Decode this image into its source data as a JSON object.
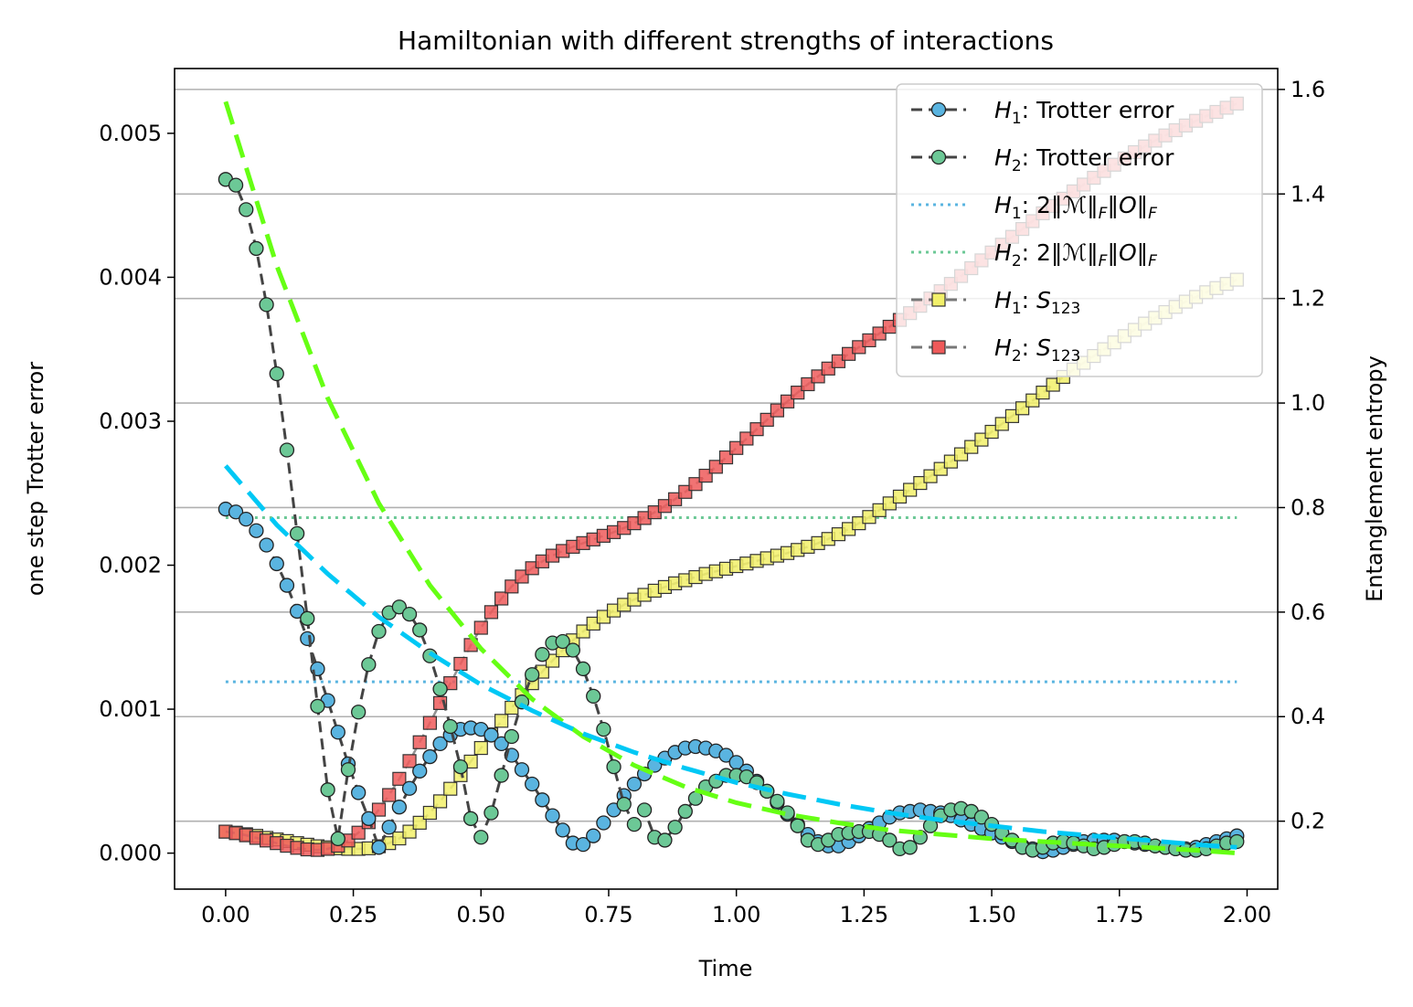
{
  "chart_data": {
    "type": "line",
    "title": "Hamiltonian with different strengths of interactions",
    "xlabel": "Time",
    "ylabel_left": "one step Trotter error",
    "ylabel_right": "Entanglement entropy",
    "xlim": [
      -0.1,
      2.06
    ],
    "ylim_left": [
      -0.00025,
      0.00545
    ],
    "ylim_right": [
      0.07,
      1.64
    ],
    "xticks": [
      "0.00",
      "0.25",
      "0.50",
      "0.75",
      "1.00",
      "1.25",
      "1.50",
      "1.75",
      "2.00"
    ],
    "xtick_values": [
      0,
      0.25,
      0.5,
      0.75,
      1.0,
      1.25,
      1.5,
      1.75,
      2.0
    ],
    "yticks_left": [
      "0.000",
      "0.001",
      "0.002",
      "0.003",
      "0.004",
      "0.005"
    ],
    "ytick_values_left": [
      0,
      0.001,
      0.002,
      0.003,
      0.004,
      0.005
    ],
    "yticks_right": [
      "0.2",
      "0.4",
      "0.6",
      "0.8",
      "1.0",
      "1.2",
      "1.4",
      "1.6"
    ],
    "ytick_values_right": [
      0.2,
      0.4,
      0.6,
      0.8,
      1.0,
      1.2,
      1.4,
      1.6
    ],
    "grid": "horizontal lines at right-axis ticks",
    "legend_position": "top-right",
    "series": [
      {
        "name": "H1: Trotter error",
        "legend_italic": "H",
        "legend_sub": "1",
        "legend_rest": ": Trotter error",
        "axis": "left",
        "style": "dashed-circles",
        "line_color": "#444444",
        "marker_color": "#5ab4e0",
        "x": [
          0.0,
          0.02,
          0.04,
          0.06,
          0.08,
          0.1,
          0.12,
          0.14,
          0.16,
          0.18,
          0.2,
          0.22,
          0.24,
          0.26,
          0.28,
          0.3,
          0.32,
          0.34,
          0.36,
          0.38,
          0.4,
          0.42,
          0.44,
          0.46,
          0.48,
          0.5,
          0.52,
          0.54,
          0.56,
          0.58,
          0.6,
          0.62,
          0.64,
          0.66,
          0.68,
          0.7,
          0.72,
          0.74,
          0.76,
          0.78,
          0.8,
          0.82,
          0.84,
          0.86,
          0.88,
          0.9,
          0.92,
          0.94,
          0.96,
          0.98,
          1.0,
          1.02,
          1.04,
          1.06,
          1.08,
          1.1,
          1.12,
          1.14,
          1.16,
          1.18,
          1.2,
          1.22,
          1.24,
          1.26,
          1.28,
          1.3,
          1.32,
          1.34,
          1.36,
          1.38,
          1.4,
          1.42,
          1.44,
          1.46,
          1.48,
          1.5,
          1.52,
          1.54,
          1.56,
          1.58,
          1.6,
          1.62,
          1.64,
          1.66,
          1.68,
          1.7,
          1.72,
          1.74,
          1.76,
          1.78,
          1.8,
          1.82,
          1.84,
          1.86,
          1.88,
          1.9,
          1.92,
          1.94,
          1.96,
          1.98
        ],
        "values": [
          0.00239,
          0.00237,
          0.00232,
          0.00224,
          0.00214,
          0.00201,
          0.00186,
          0.00168,
          0.00149,
          0.00128,
          0.00106,
          0.00084,
          0.00062,
          0.00042,
          0.00024,
          4e-05,
          0.00018,
          0.00032,
          0.00045,
          0.00057,
          0.00067,
          0.00076,
          0.00082,
          0.00086,
          0.00087,
          0.00086,
          0.00082,
          0.00076,
          0.00068,
          0.00058,
          0.00048,
          0.00037,
          0.00026,
          0.00016,
          7e-05,
          6e-05,
          0.00012,
          0.00021,
          0.0003,
          0.0004,
          0.00048,
          0.00055,
          0.00061,
          0.00066,
          0.0007,
          0.00073,
          0.00074,
          0.00073,
          0.00071,
          0.00068,
          0.00063,
          0.00057,
          0.0005,
          0.00043,
          0.00035,
          0.00027,
          0.0002,
          0.00013,
          8e-05,
          5e-05,
          5e-05,
          8e-05,
          0.00012,
          0.00017,
          0.00021,
          0.00025,
          0.00028,
          0.00029,
          0.0003,
          0.00029,
          0.00028,
          0.00026,
          0.00023,
          0.0002,
          0.00017,
          0.00014,
          0.00011,
          8e-05,
          5e-05,
          3e-05,
          1e-05,
          2e-05,
          4e-05,
          6e-05,
          8e-05,
          9e-05,
          9e-05,
          9e-05,
          8e-05,
          7e-05,
          6e-05,
          5e-05,
          4e-05,
          3e-05,
          3e-05,
          4e-05,
          6e-05,
          8e-05,
          0.0001,
          0.00012
        ]
      },
      {
        "name": "H2: Trotter error",
        "legend_italic": "H",
        "legend_sub": "2",
        "legend_rest": ": Trotter error",
        "axis": "left",
        "style": "dashed-circles",
        "line_color": "#444444",
        "marker_color": "#6cc896",
        "x": [
          0.0,
          0.02,
          0.04,
          0.06,
          0.08,
          0.1,
          0.12,
          0.14,
          0.16,
          0.18,
          0.2,
          0.22,
          0.24,
          0.26,
          0.28,
          0.3,
          0.32,
          0.34,
          0.36,
          0.38,
          0.4,
          0.42,
          0.44,
          0.46,
          0.48,
          0.5,
          0.52,
          0.54,
          0.56,
          0.58,
          0.6,
          0.62,
          0.64,
          0.66,
          0.68,
          0.7,
          0.72,
          0.74,
          0.76,
          0.78,
          0.8,
          0.82,
          0.84,
          0.86,
          0.88,
          0.9,
          0.92,
          0.94,
          0.96,
          0.98,
          1.0,
          1.02,
          1.04,
          1.06,
          1.08,
          1.1,
          1.12,
          1.14,
          1.16,
          1.18,
          1.2,
          1.22,
          1.24,
          1.26,
          1.28,
          1.3,
          1.32,
          1.34,
          1.36,
          1.38,
          1.4,
          1.42,
          1.44,
          1.46,
          1.48,
          1.5,
          1.52,
          1.54,
          1.56,
          1.58,
          1.6,
          1.62,
          1.64,
          1.66,
          1.68,
          1.7,
          1.72,
          1.74,
          1.76,
          1.78,
          1.8,
          1.82,
          1.84,
          1.86,
          1.88,
          1.9,
          1.92,
          1.94,
          1.96,
          1.98
        ],
        "values": [
          0.00468,
          0.00464,
          0.00447,
          0.0042,
          0.00381,
          0.00333,
          0.0028,
          0.00222,
          0.00163,
          0.00102,
          0.00044,
          0.0001,
          0.00058,
          0.00098,
          0.00131,
          0.00154,
          0.00167,
          0.00171,
          0.00166,
          0.00155,
          0.00137,
          0.00114,
          0.00088,
          0.0006,
          0.00024,
          0.00011,
          0.00028,
          0.00054,
          0.00081,
          0.00105,
          0.00124,
          0.00138,
          0.00146,
          0.00147,
          0.00141,
          0.00128,
          0.00109,
          0.00086,
          0.0006,
          0.00034,
          0.0002,
          0.0003,
          0.00011,
          9e-05,
          0.00018,
          0.00029,
          0.00038,
          0.00046,
          0.0005,
          0.00054,
          0.00054,
          0.00053,
          0.00049,
          0.00043,
          0.00036,
          0.00028,
          0.00019,
          9e-05,
          6e-05,
          9e-05,
          0.00013,
          0.00014,
          0.00015,
          0.00015,
          0.00013,
          9e-05,
          3e-05,
          4e-05,
          0.00011,
          0.00019,
          0.00026,
          0.0003,
          0.00031,
          0.00029,
          0.00025,
          0.0002,
          0.00014,
          9e-05,
          4e-05,
          2e-05,
          4e-05,
          7e-05,
          8e-05,
          7e-05,
          5e-05,
          3e-05,
          4e-05,
          6e-05,
          8e-05,
          8e-05,
          7e-05,
          5e-05,
          4e-05,
          3e-05,
          2e-05,
          2e-05,
          3e-05,
          5e-05,
          7e-05,
          8e-05
        ]
      },
      {
        "name": "H1: 2‖M‖F‖O‖F",
        "legend_italic": "H",
        "legend_sub": "1",
        "legend_rest": ": 2‖ℳ‖",
        "legend_f": "F",
        "legend_mid": "‖O‖",
        "legend_f2": "F",
        "axis": "left",
        "style": "dotted",
        "line_color": "#5ab4e0",
        "x": [
          0.0,
          1.98
        ],
        "values": [
          0.00119,
          0.00119
        ]
      },
      {
        "name": "H2: 2‖M‖F‖O‖F",
        "legend_italic": "H",
        "legend_sub": "2",
        "legend_rest": ": 2‖ℳ‖",
        "legend_f": "F",
        "legend_mid": "‖O‖",
        "legend_f2": "F",
        "axis": "left",
        "style": "dotted",
        "line_color": "#6cc896",
        "x": [
          0.0,
          1.98
        ],
        "values": [
          0.00233,
          0.00233
        ]
      },
      {
        "name": "H1: S123",
        "legend_italic": "H",
        "legend_sub": "1",
        "legend_rest": ": ",
        "legend_s": "S",
        "legend_s_sub": "123",
        "axis": "right",
        "style": "dashed-squares",
        "line_color": "#777777",
        "marker_color": "#f2f06a",
        "x": [
          0.0,
          0.02,
          0.04,
          0.06,
          0.08,
          0.1,
          0.12,
          0.14,
          0.16,
          0.18,
          0.2,
          0.22,
          0.24,
          0.26,
          0.28,
          0.3,
          0.32,
          0.34,
          0.36,
          0.38,
          0.4,
          0.42,
          0.44,
          0.46,
          0.48,
          0.5,
          0.52,
          0.54,
          0.56,
          0.58,
          0.6,
          0.62,
          0.64,
          0.66,
          0.68,
          0.7,
          0.72,
          0.74,
          0.76,
          0.78,
          0.8,
          0.82,
          0.84,
          0.86,
          0.88,
          0.9,
          0.92,
          0.94,
          0.96,
          0.98,
          1.0,
          1.02,
          1.04,
          1.06,
          1.08,
          1.1,
          1.12,
          1.14,
          1.16,
          1.18,
          1.2,
          1.22,
          1.24,
          1.26,
          1.28,
          1.3,
          1.32,
          1.34,
          1.36,
          1.38,
          1.4,
          1.42,
          1.44,
          1.46,
          1.48,
          1.5,
          1.52,
          1.54,
          1.56,
          1.58,
          1.6,
          1.62,
          1.64,
          1.66,
          1.68,
          1.7,
          1.72,
          1.74,
          1.76,
          1.78,
          1.8,
          1.82,
          1.84,
          1.86,
          1.88,
          1.9,
          1.92,
          1.94,
          1.96,
          1.98
        ],
        "values": [
          0.18,
          0.178,
          0.175,
          0.172,
          0.168,
          0.165,
          0.162,
          0.158,
          0.155,
          0.152,
          0.15,
          0.148,
          0.147,
          0.147,
          0.148,
          0.152,
          0.158,
          0.167,
          0.18,
          0.197,
          0.216,
          0.238,
          0.262,
          0.288,
          0.314,
          0.34,
          0.366,
          0.392,
          0.417,
          0.441,
          0.464,
          0.486,
          0.507,
          0.527,
          0.546,
          0.563,
          0.578,
          0.591,
          0.603,
          0.614,
          0.624,
          0.633,
          0.641,
          0.648,
          0.655,
          0.661,
          0.667,
          0.673,
          0.678,
          0.683,
          0.688,
          0.693,
          0.698,
          0.703,
          0.708,
          0.713,
          0.719,
          0.725,
          0.732,
          0.74,
          0.749,
          0.759,
          0.77,
          0.782,
          0.795,
          0.808,
          0.821,
          0.834,
          0.847,
          0.86,
          0.874,
          0.888,
          0.902,
          0.916,
          0.93,
          0.945,
          0.96,
          0.975,
          0.99,
          1.005,
          1.02,
          1.035,
          1.05,
          1.064,
          1.077,
          1.09,
          1.103,
          1.116,
          1.128,
          1.14,
          1.152,
          1.163,
          1.174,
          1.184,
          1.194,
          1.203,
          1.212,
          1.22,
          1.228,
          1.236
        ]
      },
      {
        "name": "H2: S123",
        "legend_italic": "H",
        "legend_sub": "2",
        "legend_rest": ": ",
        "legend_s": "S",
        "legend_s_sub": "123",
        "axis": "right",
        "style": "dashed-squares",
        "line_color": "#777777",
        "marker_color": "#ef5a5a",
        "x": [
          0.0,
          0.02,
          0.04,
          0.06,
          0.08,
          0.1,
          0.12,
          0.14,
          0.16,
          0.18,
          0.2,
          0.22,
          0.24,
          0.26,
          0.28,
          0.3,
          0.32,
          0.34,
          0.36,
          0.38,
          0.4,
          0.42,
          0.44,
          0.46,
          0.48,
          0.5,
          0.52,
          0.54,
          0.56,
          0.58,
          0.6,
          0.62,
          0.64,
          0.66,
          0.68,
          0.7,
          0.72,
          0.74,
          0.76,
          0.78,
          0.8,
          0.82,
          0.84,
          0.86,
          0.88,
          0.9,
          0.92,
          0.94,
          0.96,
          0.98,
          1.0,
          1.02,
          1.04,
          1.06,
          1.08,
          1.1,
          1.12,
          1.14,
          1.16,
          1.18,
          1.2,
          1.22,
          1.24,
          1.26,
          1.28,
          1.3,
          1.32,
          1.34,
          1.36,
          1.38,
          1.4,
          1.42,
          1.44,
          1.46,
          1.48,
          1.5,
          1.52,
          1.54,
          1.56,
          1.58,
          1.6,
          1.62,
          1.64,
          1.66,
          1.68,
          1.7,
          1.72,
          1.74,
          1.76,
          1.78,
          1.8,
          1.82,
          1.84,
          1.86,
          1.88,
          1.9,
          1.92,
          1.94,
          1.96,
          1.98
        ],
        "values": [
          0.18,
          0.177,
          0.173,
          0.168,
          0.163,
          0.158,
          0.153,
          0.149,
          0.146,
          0.145,
          0.147,
          0.153,
          0.163,
          0.178,
          0.198,
          0.222,
          0.25,
          0.281,
          0.315,
          0.351,
          0.388,
          0.426,
          0.464,
          0.501,
          0.537,
          0.57,
          0.6,
          0.626,
          0.649,
          0.668,
          0.684,
          0.697,
          0.708,
          0.717,
          0.725,
          0.732,
          0.739,
          0.746,
          0.753,
          0.761,
          0.77,
          0.78,
          0.791,
          0.803,
          0.816,
          0.83,
          0.845,
          0.861,
          0.878,
          0.896,
          0.914,
          0.932,
          0.95,
          0.968,
          0.986,
          1.003,
          1.02,
          1.036,
          1.051,
          1.066,
          1.08,
          1.094,
          1.107,
          1.12,
          1.133,
          1.146,
          1.159,
          1.172,
          1.186,
          1.2,
          1.214,
          1.228,
          1.243,
          1.258,
          1.273,
          1.288,
          1.303,
          1.318,
          1.333,
          1.348,
          1.363,
          1.377,
          1.391,
          1.405,
          1.418,
          1.431,
          1.444,
          1.456,
          1.468,
          1.48,
          1.491,
          1.502,
          1.512,
          1.522,
          1.531,
          1.54,
          1.549,
          1.557,
          1.565,
          1.573
        ]
      },
      {
        "name": "H2 fit (dashed, unlabeled)",
        "axis": "left",
        "style": "bold-dashed",
        "line_color": "#66ff14",
        "x": [
          0.0,
          0.1,
          0.2,
          0.3,
          0.4,
          0.5,
          0.6,
          0.7,
          0.8,
          0.9,
          1.0,
          1.1,
          1.2,
          1.3,
          1.4,
          1.5,
          1.6,
          1.7,
          1.8,
          1.9,
          1.98
        ],
        "values": [
          0.00522,
          0.00408,
          0.00316,
          0.00243,
          0.00186,
          0.00142,
          0.00107,
          0.00081,
          0.00061,
          0.00046,
          0.00035,
          0.00027,
          0.00021,
          0.00016,
          0.00013,
          0.0001,
          8e-05,
          6e-05,
          4e-05,
          2e-05,
          0.0
        ]
      },
      {
        "name": "H1 fit (dashed, unlabeled)",
        "axis": "left",
        "style": "bold-dashed",
        "line_color": "#00c8f5",
        "x": [
          0.0,
          0.1,
          0.2,
          0.3,
          0.4,
          0.5,
          0.6,
          0.7,
          0.8,
          0.9,
          1.0,
          1.1,
          1.2,
          1.3,
          1.4,
          1.5,
          1.6,
          1.7,
          1.8,
          1.9,
          1.98
        ],
        "values": [
          0.00269,
          0.00228,
          0.00194,
          0.00164,
          0.00139,
          0.00117,
          0.00099,
          0.00083,
          0.0007,
          0.00059,
          0.00049,
          0.00041,
          0.00034,
          0.00028,
          0.00023,
          0.00019,
          0.00015,
          0.00012,
          9e-05,
          6e-05,
          4e-05
        ]
      }
    ]
  }
}
